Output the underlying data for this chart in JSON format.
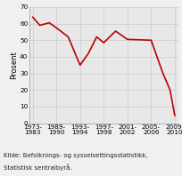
{
  "x_labels_top": [
    "1973-",
    "1989-",
    "1993-",
    "1997-",
    "2001-",
    "2005-",
    "2009-"
  ],
  "x_labels_bot": [
    "1983",
    "1990",
    "1994",
    "1998",
    "2002",
    "2006",
    "2010"
  ],
  "x_positions": [
    0,
    1,
    2,
    3,
    4,
    5,
    6
  ],
  "y_values": [
    64.0,
    59.0,
    60.5,
    57.5,
    52.0,
    35.0,
    42.0,
    52.0,
    48.5,
    55.5,
    50.5,
    50.0,
    30.0,
    20.0,
    4.5
  ],
  "x_data": [
    0,
    0.3,
    0.7,
    1.0,
    1.5,
    2.0,
    2.35,
    2.7,
    3.0,
    3.5,
    4.0,
    5.0,
    5.5,
    5.8,
    6.0
  ],
  "line_color": "#bb0000",
  "line_width": 1.2,
  "ylabel": "Prosent",
  "ylim": [
    0,
    70
  ],
  "yticks": [
    0,
    10,
    20,
    30,
    40,
    50,
    60,
    70
  ],
  "grid_color": "#cccccc",
  "plot_bg": "#e8e8e8",
  "fig_bg": "#f0f0f0",
  "caption_line1": "Kilde: Befolknings- og sysselsettingsstatistikk,",
  "caption_line2": "Statistisk sentralbyrå.",
  "caption_fontsize": 5.0,
  "ylabel_fontsize": 6.0,
  "tick_fontsize": 5.2
}
